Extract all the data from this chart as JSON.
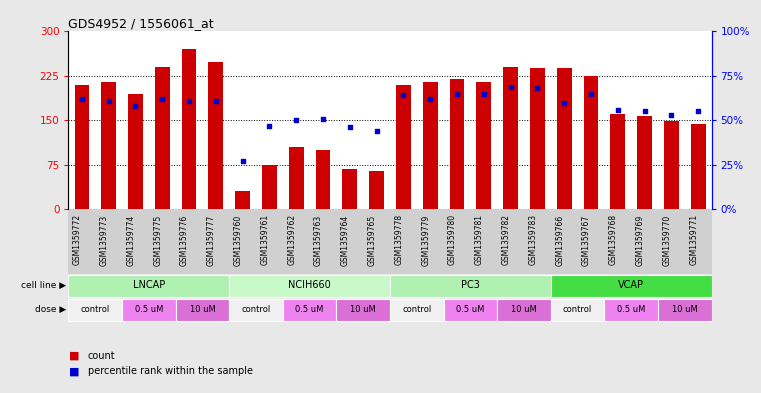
{
  "title": "GDS4952 / 1556061_at",
  "samples": [
    "GSM1359772",
    "GSM1359773",
    "GSM1359774",
    "GSM1359775",
    "GSM1359776",
    "GSM1359777",
    "GSM1359760",
    "GSM1359761",
    "GSM1359762",
    "GSM1359763",
    "GSM1359764",
    "GSM1359765",
    "GSM1359778",
    "GSM1359779",
    "GSM1359780",
    "GSM1359781",
    "GSM1359782",
    "GSM1359783",
    "GSM1359766",
    "GSM1359767",
    "GSM1359768",
    "GSM1359769",
    "GSM1359770",
    "GSM1359771"
  ],
  "counts": [
    210,
    215,
    195,
    240,
    270,
    248,
    30,
    75,
    105,
    100,
    68,
    65,
    210,
    215,
    220,
    215,
    240,
    238,
    238,
    225,
    160,
    158,
    148,
    143
  ],
  "percentiles": [
    62,
    61,
    58,
    62,
    61,
    61,
    27,
    47,
    50,
    51,
    46,
    44,
    64,
    62,
    65,
    65,
    69,
    68,
    60,
    65,
    56,
    55,
    53,
    55
  ],
  "cell_lines": [
    "LNCAP",
    "NCIH660",
    "PC3",
    "VCAP"
  ],
  "cell_line_colors": [
    "#b0f0b0",
    "#c8f8c8",
    "#b0f0b0",
    "#44dd44"
  ],
  "dose_colors": [
    "#f0f0f0",
    "#ee82ee",
    "#da70d6"
  ],
  "bar_color": "#cc0000",
  "dot_color": "#0000cc",
  "ylim_left": [
    0,
    300
  ],
  "ylim_right": [
    0,
    100
  ],
  "yticks_left": [
    0,
    75,
    150,
    225,
    300
  ],
  "yticks_right": [
    0,
    25,
    50,
    75,
    100
  ],
  "ytick_labels_left": [
    "0",
    "75",
    "150",
    "225",
    "300"
  ],
  "ytick_labels_right": [
    "0%",
    "25%",
    "50%",
    "75%",
    "100%"
  ],
  "legend_count_label": "count",
  "legend_pct_label": "percentile rank within the sample",
  "bg_color": "#e8e8e8",
  "plot_bg": "#ffffff",
  "label_bg": "#d0d0d0"
}
